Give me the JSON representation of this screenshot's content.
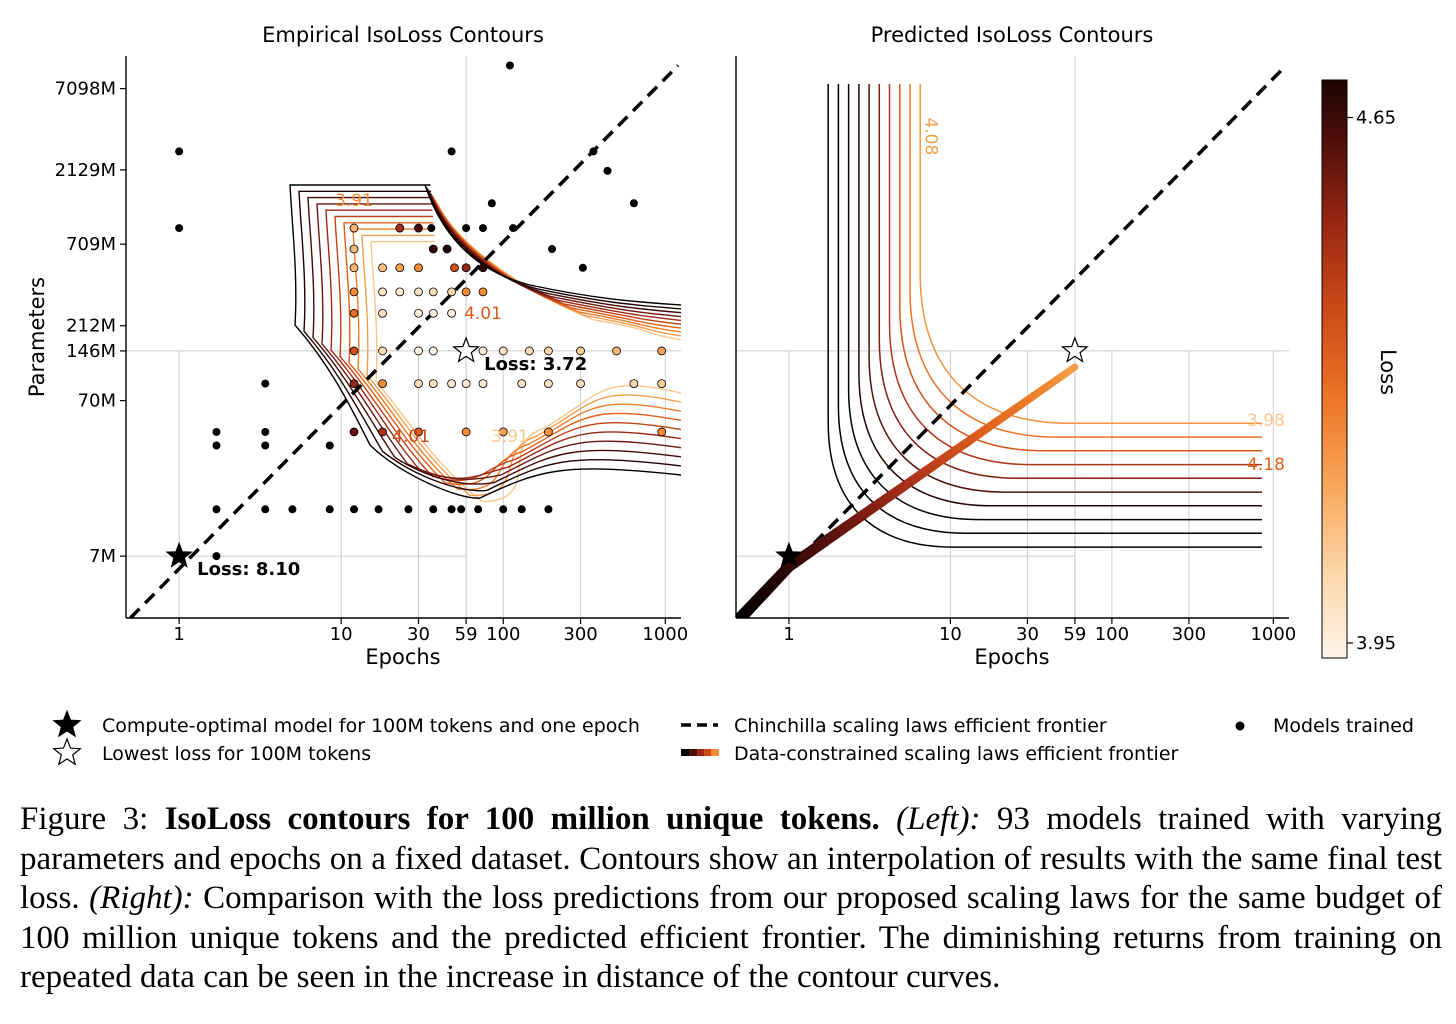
{
  "chart_data": [
    {
      "type": "scatter",
      "title": "Empirical IsoLoss Contours",
      "xlabel": "Epochs",
      "ylabel": "Parameters",
      "x_scale": "log",
      "y_scale": "log",
      "xlim": [
        0.47,
        1250
      ],
      "ylim_millions": [
        2.8,
        11500
      ],
      "x_ticks": [
        1,
        10,
        30,
        59,
        100,
        300,
        1000
      ],
      "x_tick_labels": [
        "1",
        "10",
        "30",
        "59",
        "100",
        "300",
        "1000"
      ],
      "y_ticks_millions": [
        7,
        70,
        146,
        212,
        709,
        2129,
        7098
      ],
      "y_tick_labels": [
        "7M",
        "70M",
        "146M",
        "212M",
        "709M",
        "2129M",
        "7098M"
      ],
      "reference_lines": {
        "epochs": 59,
        "params_millions": 146
      },
      "contour_labels": [
        {
          "text": "3.91",
          "epochs": 12,
          "params_millions": 1250
        },
        {
          "text": "4.01",
          "epochs": 75,
          "params_millions": 235
        },
        {
          "text": "4.01",
          "epochs": 27,
          "params_millions": 38
        },
        {
          "text": "3.91",
          "epochs": 110,
          "params_millions": 38
        }
      ],
      "points_filled": [
        [
          1,
          2800
        ],
        [
          1,
          900
        ],
        [
          1.7,
          44
        ],
        [
          1.7,
          36
        ],
        [
          1.7,
          14
        ],
        [
          1.7,
          7
        ],
        [
          3.4,
          90
        ],
        [
          3.4,
          44
        ],
        [
          3.4,
          36
        ],
        [
          3.4,
          14
        ],
        [
          5,
          14
        ],
        [
          8.5,
          36
        ],
        [
          8.5,
          14
        ],
        [
          12,
          14
        ],
        [
          17,
          14
        ],
        [
          26,
          14
        ],
        [
          37,
          14
        ],
        [
          48,
          14
        ],
        [
          55,
          14
        ],
        [
          70,
          14
        ],
        [
          100,
          14
        ],
        [
          130,
          14
        ],
        [
          190,
          14
        ],
        [
          48,
          2800
        ],
        [
          36,
          900
        ],
        [
          59,
          900
        ],
        [
          75,
          900
        ],
        [
          115,
          900
        ],
        [
          85,
          1300
        ],
        [
          110,
          10000
        ],
        [
          360,
          2800
        ],
        [
          440,
          2100
        ],
        [
          640,
          1300
        ],
        [
          200,
          660
        ],
        [
          310,
          500
        ]
      ],
      "points_colored": [
        [
          12,
          900,
          3.91
        ],
        [
          23,
          900,
          4.3
        ],
        [
          30,
          900,
          4.5
        ],
        [
          37,
          660,
          4.55
        ],
        [
          45,
          660,
          4.6
        ],
        [
          12,
          660,
          3.9
        ],
        [
          18,
          500,
          3.88
        ],
        [
          23,
          500,
          3.95
        ],
        [
          30,
          500,
          4.0
        ],
        [
          12,
          500,
          3.9
        ],
        [
          50,
          500,
          4.2
        ],
        [
          59,
          500,
          4.35
        ],
        [
          75,
          500,
          4.55
        ],
        [
          12,
          350,
          4.0
        ],
        [
          18,
          350,
          3.78
        ],
        [
          23,
          350,
          3.76
        ],
        [
          30,
          350,
          3.78
        ],
        [
          37,
          350,
          3.8
        ],
        [
          48,
          350,
          3.82
        ],
        [
          59,
          350,
          4.0
        ],
        [
          75,
          350,
          4.0
        ],
        [
          12,
          255,
          4.1
        ],
        [
          18,
          255,
          3.78
        ],
        [
          30,
          255,
          3.74
        ],
        [
          37,
          255,
          3.73
        ],
        [
          48,
          255,
          3.74
        ],
        [
          12,
          146,
          4.2
        ],
        [
          18,
          146,
          3.8
        ],
        [
          30,
          146,
          3.73
        ],
        [
          37,
          146,
          3.72
        ],
        [
          75,
          146,
          3.75
        ],
        [
          100,
          146,
          3.78
        ],
        [
          145,
          146,
          3.8
        ],
        [
          190,
          146,
          3.82
        ],
        [
          300,
          146,
          3.85
        ],
        [
          500,
          146,
          3.9
        ],
        [
          950,
          146,
          3.95
        ],
        [
          12,
          90,
          4.35
        ],
        [
          18,
          90,
          4.0
        ],
        [
          30,
          90,
          3.8
        ],
        [
          37,
          90,
          3.78
        ],
        [
          48,
          90,
          3.76
        ],
        [
          59,
          90,
          3.75
        ],
        [
          75,
          90,
          3.76
        ],
        [
          130,
          90,
          3.77
        ],
        [
          190,
          90,
          3.78
        ],
        [
          300,
          90,
          3.8
        ],
        [
          640,
          90,
          3.82
        ],
        [
          950,
          90,
          3.85
        ],
        [
          12,
          44,
          4.45
        ],
        [
          18,
          44,
          4.3
        ],
        [
          30,
          44,
          4.15
        ],
        [
          59,
          44,
          4.0
        ],
        [
          100,
          44,
          3.95
        ],
        [
          190,
          44,
          3.98
        ],
        [
          950,
          44,
          4.0
        ]
      ],
      "marker_annotations": [
        {
          "marker": "filled-star",
          "epochs": 1,
          "params_millions": 7,
          "label": "Loss: 8.10"
        },
        {
          "marker": "hollow-star",
          "epochs": 59,
          "params_millions": 146,
          "label": "Loss: 3.72"
        }
      ],
      "chinchilla_frontier": {
        "style": "dashed",
        "from": [
          0.5,
          2.8
        ],
        "to": [
          1200,
          10000
        ]
      }
    },
    {
      "type": "line",
      "title": "Predicted IsoLoss Contours",
      "xlabel": "Epochs",
      "x_scale": "log",
      "y_scale": "log",
      "xlim": [
        0.47,
        1250
      ],
      "ylim_millions": [
        2.8,
        11500
      ],
      "x_ticks": [
        1,
        10,
        30,
        59,
        100,
        300,
        1000
      ],
      "x_tick_labels": [
        "1",
        "10",
        "30",
        "59",
        "100",
        "300",
        "1000"
      ],
      "y_ticks_millions": [
        7,
        70,
        146,
        212,
        709,
        2129,
        7098
      ],
      "reference_lines": {
        "epochs": 59,
        "params_millions": 146
      },
      "contour_levels": [
        3.98,
        4.08,
        4.18,
        4.28,
        4.38,
        4.48,
        4.58,
        4.68,
        4.78,
        4.88
      ],
      "contour_labels": [
        {
          "text": "4.08",
          "epochs": 7,
          "params_millions": 3500
        },
        {
          "text": "3.98",
          "epochs": 900,
          "params_millions": 48
        },
        {
          "text": "4.18",
          "epochs": 900,
          "params_millions": 25
        }
      ],
      "marker_annotations": [
        {
          "marker": "filled-star",
          "epochs": 1,
          "params_millions": 7
        },
        {
          "marker": "hollow-star",
          "epochs": 59,
          "params_millions": 146
        }
      ],
      "chinchilla_frontier": {
        "style": "dashed",
        "from": [
          0.5,
          2.8
        ],
        "to": [
          1200,
          10000
        ]
      },
      "data_constrained_frontier": {
        "from": [
          0.5,
          2.8
        ],
        "via": [
          1,
          6
        ],
        "to": [
          59,
          115
        ],
        "loss_from": 4.7,
        "loss_to": 3.95
      },
      "colorbar": {
        "label": "Loss",
        "ticks": [
          4.65,
          3.95
        ],
        "tick_labels": [
          "4.65",
          "3.95"
        ],
        "range": [
          3.93,
          4.7
        ]
      }
    }
  ],
  "colors": {
    "scale": [
      "#fff5eb",
      "#f9c98e",
      "#f28b32",
      "#e0621b",
      "#b2341a",
      "#6e1710",
      "#2a0605",
      "#000000"
    ],
    "reference_line": "#cccccc"
  },
  "legend": {
    "compute_optimal": "Compute-optimal model for 100M tokens and one epoch",
    "lowest_loss": "Lowest loss for 100M tokens",
    "chinchilla": "Chinchilla scaling laws efficient frontier",
    "data_constrained": "Data-constrained scaling laws efficient frontier",
    "models_trained": "Models trained"
  },
  "caption": {
    "label": "Figure 3:",
    "title": "IsoLoss contours for 100 million unique tokens.",
    "left_tag": "(Left):",
    "left_text": "93 models trained with varying parameters and epochs on a fixed dataset. Contours show an interpolation of results with the same final test loss.",
    "right_tag": "(Right):",
    "right_text": "Comparison with the loss predictions from our proposed scaling laws for the same budget of 100 million unique tokens and the predicted efficient frontier. The diminishing returns from training on repeated data can be seen in the increase in distance of the contour curves."
  }
}
